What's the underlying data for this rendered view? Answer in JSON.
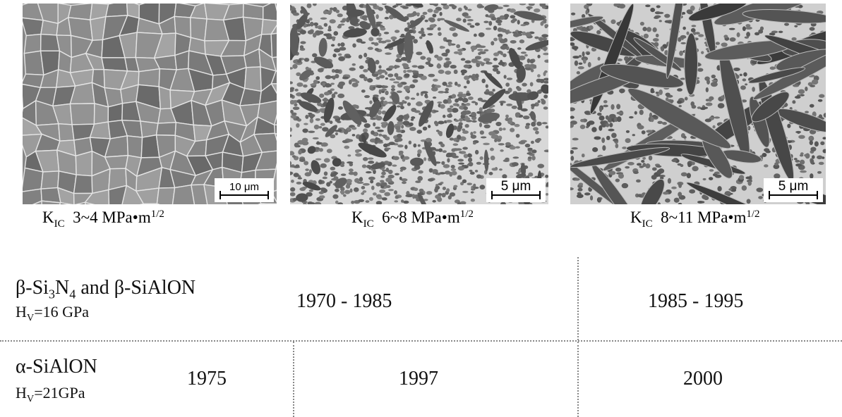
{
  "panels": [
    {
      "scale_bar": "10 μm",
      "caption": {
        "symbol": "K",
        "subscript": "IC",
        "value": "3~4 MPa•m",
        "superscript": "1/2"
      }
    },
    {
      "scale_bar": "5 μm",
      "caption": {
        "symbol": "K",
        "subscript": "IC",
        "value": "6~8 MPa•m",
        "superscript": "1/2"
      }
    },
    {
      "scale_bar": "5 μm",
      "caption": {
        "symbol": "K",
        "subscript": "IC",
        "value": "8~11 MPa•m",
        "superscript": "1/2"
      }
    }
  ],
  "table": {
    "rows": [
      {
        "material": [
          "β-Si",
          "3",
          "N",
          "4",
          " and β-SiAlON"
        ],
        "hardness": [
          "H",
          "V",
          "=16 GPa"
        ],
        "periods": [
          "1970 - 1985",
          "1985 - 1995"
        ]
      },
      {
        "material": [
          "α-SiAlON"
        ],
        "hardness": [
          "H",
          "V",
          "=21GPa"
        ],
        "periods": [
          "1975",
          "1997",
          "2000"
        ]
      }
    ]
  }
}
